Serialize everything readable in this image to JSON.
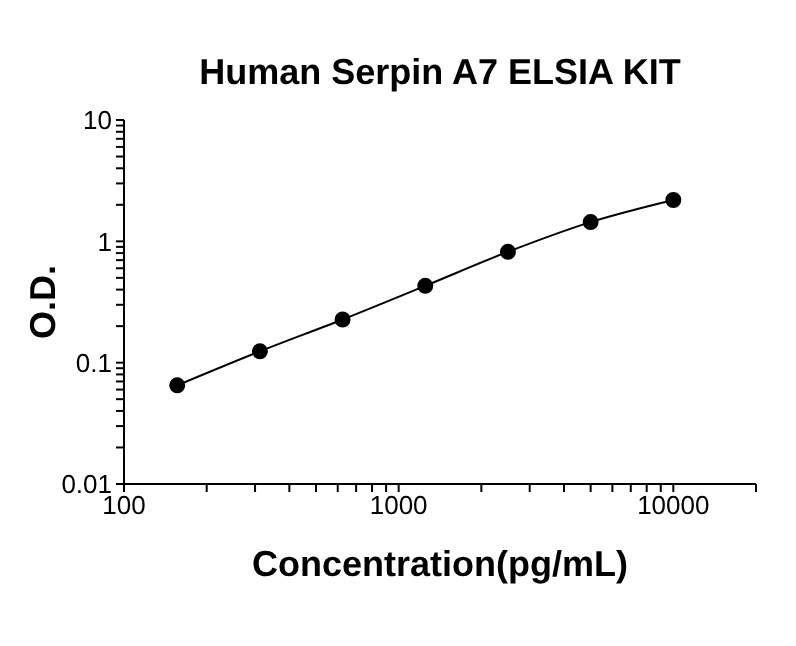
{
  "chart_data": {
    "type": "line",
    "title": "Human Serpin A7 ELSIA KIT",
    "xlabel": "Concentration(pg/mL)",
    "ylabel": "O.D.",
    "x": [
      156.25,
      312.5,
      625,
      1250,
      2500,
      5000,
      10000
    ],
    "series": [
      {
        "color": "#000000",
        "values": [
          0.065,
          0.124,
          0.227,
          0.43,
          0.82,
          1.44,
          2.19
        ]
      }
    ],
    "log": "xy",
    "xlim": [
      100,
      20000
    ],
    "ylim": [
      0.01,
      10
    ],
    "xticks": [
      100,
      {
        "value": 200,
        "label": null
      },
      {
        "value": 300,
        "label": null
      },
      {
        "value": 400,
        "label": null
      },
      {
        "value": 500,
        "label": null
      },
      {
        "value": 600,
        "label": null
      },
      {
        "value": 700,
        "label": null
      },
      {
        "value": 800,
        "label": null
      },
      {
        "value": 900,
        "label": null
      },
      1000,
      {
        "value": 2000,
        "label": null
      },
      {
        "value": 3000,
        "label": null
      },
      {
        "value": 4000,
        "label": null
      },
      {
        "value": 5000,
        "label": null
      },
      {
        "value": 6000,
        "label": null
      },
      {
        "value": 7000,
        "label": null
      },
      {
        "value": 8000,
        "label": null
      },
      {
        "value": 9000,
        "label": null
      },
      10000,
      {
        "value": 20000,
        "label": null
      }
    ],
    "yticks": [
      0.01,
      {
        "value": 0.02,
        "label": null
      },
      {
        "value": 0.03,
        "label": null
      },
      {
        "value": 0.04,
        "label": null
      },
      {
        "value": 0.05,
        "label": null
      },
      {
        "value": 0.06,
        "label": null
      },
      {
        "value": 0.07,
        "label": null
      },
      {
        "value": 0.08,
        "label": null
      },
      {
        "value": 0.09,
        "label": null
      },
      0.1,
      {
        "value": 0.2,
        "label": null
      },
      {
        "value": 0.3,
        "label": null
      },
      {
        "value": 0.4,
        "label": null
      },
      {
        "value": 0.5,
        "label": null
      },
      {
        "value": 0.6,
        "label": null
      },
      {
        "value": 0.7,
        "label": null
      },
      {
        "value": 0.8,
        "label": null
      },
      {
        "value": 0.9,
        "label": null
      },
      1,
      {
        "value": 2,
        "label": null
      },
      {
        "value": 3,
        "label": null
      },
      {
        "value": 4,
        "label": null
      },
      {
        "value": 5,
        "label": null
      },
      {
        "value": 6,
        "label": null
      },
      {
        "value": 7,
        "label": null
      },
      {
        "value": 8,
        "label": null
      },
      {
        "value": 9,
        "label": null
      },
      10
    ],
    "grid": false,
    "legend": false,
    "marker": "circle",
    "line_style": "solid"
  }
}
